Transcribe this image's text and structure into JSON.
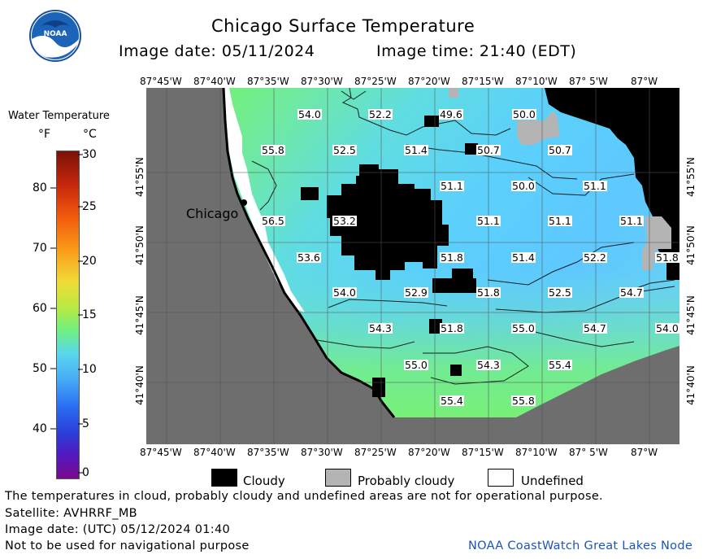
{
  "header": {
    "title": "Chicago Surface Temperature",
    "image_date": "Image date: 05/11/2024",
    "image_time": "Image time: 21:40 (EDT)"
  },
  "logo": {
    "text": "NOAA",
    "icon": "noaa-logo-icon"
  },
  "colorbar": {
    "title": "Water Temperature",
    "unit_f": "°F",
    "unit_c": "°C",
    "f_ticks": [
      "80",
      "70",
      "60",
      "50",
      "40"
    ],
    "c_ticks": [
      "30",
      "25",
      "20",
      "15",
      "10",
      "5",
      "0"
    ]
  },
  "axes": {
    "lon_ticks": [
      "87°45'W",
      "87°40'W",
      "87°35'W",
      "87°30'W",
      "87°25'W",
      "87°20'W",
      "87°15'W",
      "87°10'W",
      "87° 5'W",
      "87°W"
    ],
    "lat_ticks": [
      "41°55'N",
      "41°50'N",
      "41°45'N",
      "41°40'N"
    ]
  },
  "city": "Chicago",
  "temperature_labels": [
    "54.0",
    "52.2",
    "49.6",
    "50.0",
    "55.8",
    "52.5",
    "51.4",
    "50.7",
    "50.7",
    "51.1",
    "50.0",
    "51.1",
    "56.5",
    "53.2",
    "51.1",
    "51.1",
    "51.1",
    "53.6",
    "51.8",
    "51.4",
    "52.2",
    "51.8",
    "54.0",
    "52.9",
    "51.8",
    "52.5",
    "54.7",
    "54.3",
    "51.8",
    "55.0",
    "54.7",
    "54.0",
    "55.0",
    "54.3",
    "55.4",
    "55.4",
    "55.8"
  ],
  "legend": {
    "cloudy": "Cloudy",
    "probably_cloudy": "Probably cloudy",
    "undefined": "Undefined"
  },
  "footer": {
    "disclaimer": "The temperatures in cloud, probably cloudy and undefined areas are not for operational purpose.",
    "satellite": "Satellite: AVHRRF_MB",
    "utc_date": "Image date: (UTC) 05/12/2024  01:40",
    "navigation": "Not to be used for navigational purpose",
    "credit": "NOAA CoastWatch Great Lakes Node"
  },
  "colors": {
    "land": "#6e6e6e",
    "cloud": "#000000",
    "probably_cloudy": "#b4b4b4",
    "water_cool": "#5fd2ff",
    "water_warm": "#70ee80"
  }
}
